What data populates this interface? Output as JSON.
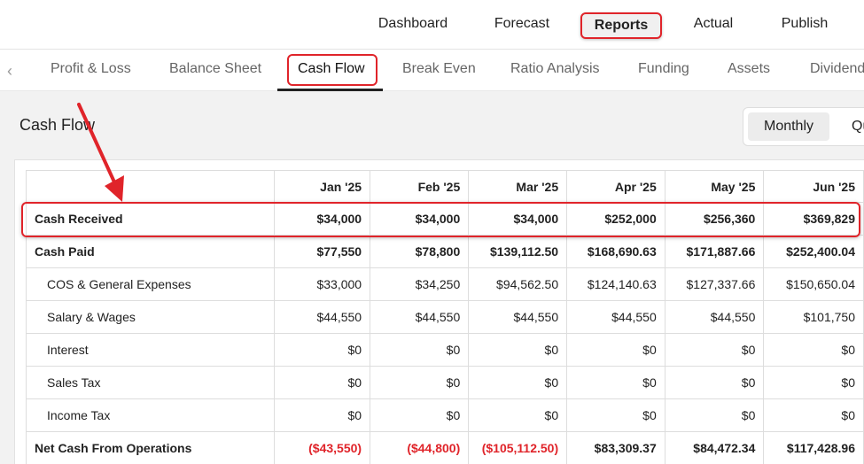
{
  "topnav": {
    "items": [
      {
        "label": "Dashboard"
      },
      {
        "label": "Forecast"
      },
      {
        "label": "Reports"
      },
      {
        "label": "Actual"
      },
      {
        "label": "Publish"
      }
    ]
  },
  "subnav": {
    "tabs": [
      {
        "label": "Profit & Loss"
      },
      {
        "label": "Balance Sheet"
      },
      {
        "label": "Cash Flow"
      },
      {
        "label": "Break Even"
      },
      {
        "label": "Ratio Analysis"
      },
      {
        "label": "Funding"
      },
      {
        "label": "Assets"
      },
      {
        "label": "Dividend"
      }
    ]
  },
  "page": {
    "title": "Cash Flow",
    "period_toggle": {
      "monthly": "Monthly",
      "other": "Qu"
    }
  },
  "table": {
    "columns": [
      "Jan '25",
      "Feb '25",
      "Mar '25",
      "Apr '25",
      "May '25",
      "Jun '25"
    ],
    "rows": [
      {
        "label": "Cash Received",
        "values": [
          "$34,000",
          "$34,000",
          "$34,000",
          "$252,000",
          "$256,360",
          "$369,829"
        ]
      },
      {
        "label": "Cash Paid",
        "values": [
          "$77,550",
          "$78,800",
          "$139,112.50",
          "$168,690.63",
          "$171,887.66",
          "$252,400.04"
        ]
      },
      {
        "label": "COS & General Expenses",
        "values": [
          "$33,000",
          "$34,250",
          "$94,562.50",
          "$124,140.63",
          "$127,337.66",
          "$150,650.04"
        ]
      },
      {
        "label": "Salary & Wages",
        "values": [
          "$44,550",
          "$44,550",
          "$44,550",
          "$44,550",
          "$44,550",
          "$101,750"
        ]
      },
      {
        "label": "Interest",
        "values": [
          "$0",
          "$0",
          "$0",
          "$0",
          "$0",
          "$0"
        ]
      },
      {
        "label": "Sales Tax",
        "values": [
          "$0",
          "$0",
          "$0",
          "$0",
          "$0",
          "$0"
        ]
      },
      {
        "label": "Income Tax",
        "values": [
          "$0",
          "$0",
          "$0",
          "$0",
          "$0",
          "$0"
        ]
      },
      {
        "label": "Net Cash From Operations",
        "values": [
          "($43,550)",
          "($44,800)",
          "($105,112.50)",
          "$83,309.37",
          "$84,472.34",
          "$117,428.96"
        ]
      }
    ]
  },
  "colors": {
    "accent_red": "#e0242a",
    "negative": "#e0242a"
  }
}
